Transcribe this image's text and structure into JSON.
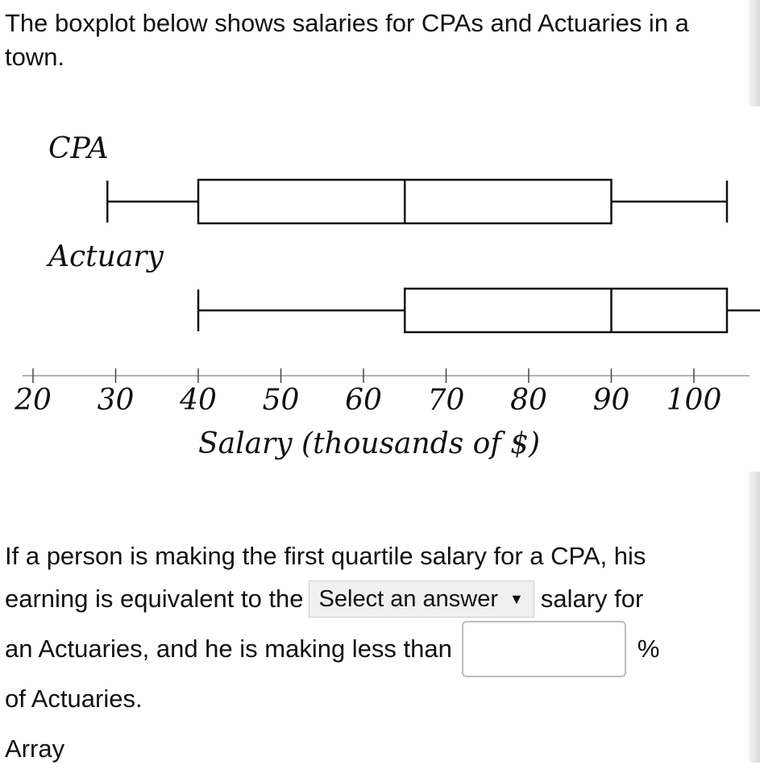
{
  "intro_text": "The boxplot below shows salaries for CPAs and Actuaries in a town.",
  "chart_data": {
    "type": "boxplot",
    "xlabel": "Salary (thousands of $)",
    "x_ticks": [
      20,
      30,
      40,
      50,
      60,
      70,
      80,
      90,
      100
    ],
    "xlim": [
      20,
      110
    ],
    "series": [
      {
        "name": "CPA",
        "min": 29,
        "q1": 40,
        "median": 65,
        "q3": 90,
        "max": 104
      },
      {
        "name": "Actuary",
        "min": 40,
        "q1": 65,
        "median": 90,
        "q3": 104,
        "max": 110
      }
    ]
  },
  "question": {
    "part1": "If a person is making the first quartile salary for a CPA, his",
    "part2": "earning is equivalent to the",
    "select_label": "Select an answer",
    "part3": "salary for",
    "part4": "an Actuaries, and he is making less than",
    "input_value": "",
    "unit": "%",
    "part5": "of Actuaries.",
    "footer": "Array"
  }
}
